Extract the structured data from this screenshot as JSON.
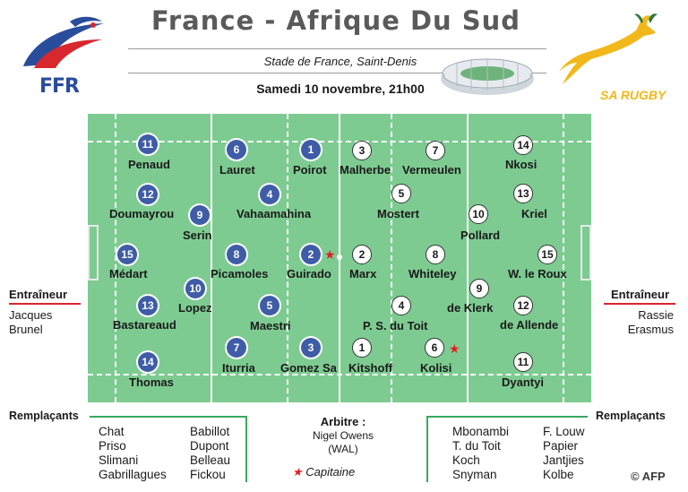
{
  "header": {
    "title": "France - Afrique Du Sud",
    "venue": "Stade de France, Saint-Denis",
    "date": "Samedi 10 novembre, 21h00"
  },
  "logos": {
    "left": "FFR",
    "right": "SA RUGBY"
  },
  "colors": {
    "france": "#3f5ca6",
    "pitch": "#7dcb91",
    "accent": "#d9272e",
    "bracket": "#3aa860",
    "springbok": "#f2b81b"
  },
  "france": {
    "players": [
      {
        "num": "11",
        "name": "Penaud"
      },
      {
        "num": "6",
        "name": "Lauret"
      },
      {
        "num": "1",
        "name": "Poirot"
      },
      {
        "num": "12",
        "name": "Doumayrou"
      },
      {
        "num": "4",
        "name": "Vahaamahina"
      },
      {
        "num": "9",
        "name": "Serin"
      },
      {
        "num": "15",
        "name": "Médart"
      },
      {
        "num": "8",
        "name": "Picamoles"
      },
      {
        "num": "2",
        "name": "Guirado"
      },
      {
        "num": "10",
        "name": "Lopez"
      },
      {
        "num": "13",
        "name": "Bastareaud"
      },
      {
        "num": "5",
        "name": "Maestri"
      },
      {
        "num": "14",
        "name": "Thomas"
      },
      {
        "num": "7",
        "name": "Iturria"
      },
      {
        "num": "3",
        "name": "Gomez Sa"
      }
    ],
    "coach_label": "Entraîneur",
    "coach": [
      "Jacques",
      "Brunel"
    ],
    "subs_label": "Remplaçants",
    "subs_col1": [
      "Chat",
      "Priso",
      "Slimani",
      "Gabrillagues"
    ],
    "subs_col2": [
      "Babillot",
      "Dupont",
      "Belleau",
      "Fickou"
    ]
  },
  "sa": {
    "players": [
      {
        "num": "3",
        "name": "Malherbe"
      },
      {
        "num": "7",
        "name": "Vermeulen"
      },
      {
        "num": "14",
        "name": "Nkosi"
      },
      {
        "num": "5",
        "name": "Mostert"
      },
      {
        "num": "13",
        "name": "Kriel"
      },
      {
        "num": "10",
        "name": "Pollard"
      },
      {
        "num": "2",
        "name": "Marx"
      },
      {
        "num": "8",
        "name": "Whiteley"
      },
      {
        "num": "15",
        "name": "W. le Roux"
      },
      {
        "num": "9",
        "name": "de Klerk"
      },
      {
        "num": "4",
        "name": "P. S. du Toit"
      },
      {
        "num": "12",
        "name": "de Allende"
      },
      {
        "num": "1",
        "name": "Kitshoff"
      },
      {
        "num": "6",
        "name": "Kolisi"
      },
      {
        "num": "11",
        "name": "Dyantyi"
      }
    ],
    "coach_label": "Entraîneur",
    "coach": [
      "Rassie",
      "Erasmus"
    ],
    "subs_label": "Remplaçants",
    "subs_col1": [
      "Mbonambi",
      "T. du Toit",
      "Koch",
      "Snyman"
    ],
    "subs_col2": [
      "F. Louw",
      "Papier",
      "Jantjies",
      "Kolbe"
    ]
  },
  "referee": {
    "label": "Arbitre :",
    "name": "Nigel Owens",
    "country": "(WAL)"
  },
  "captain_legend": "Capitaine",
  "credit": "© AFP"
}
